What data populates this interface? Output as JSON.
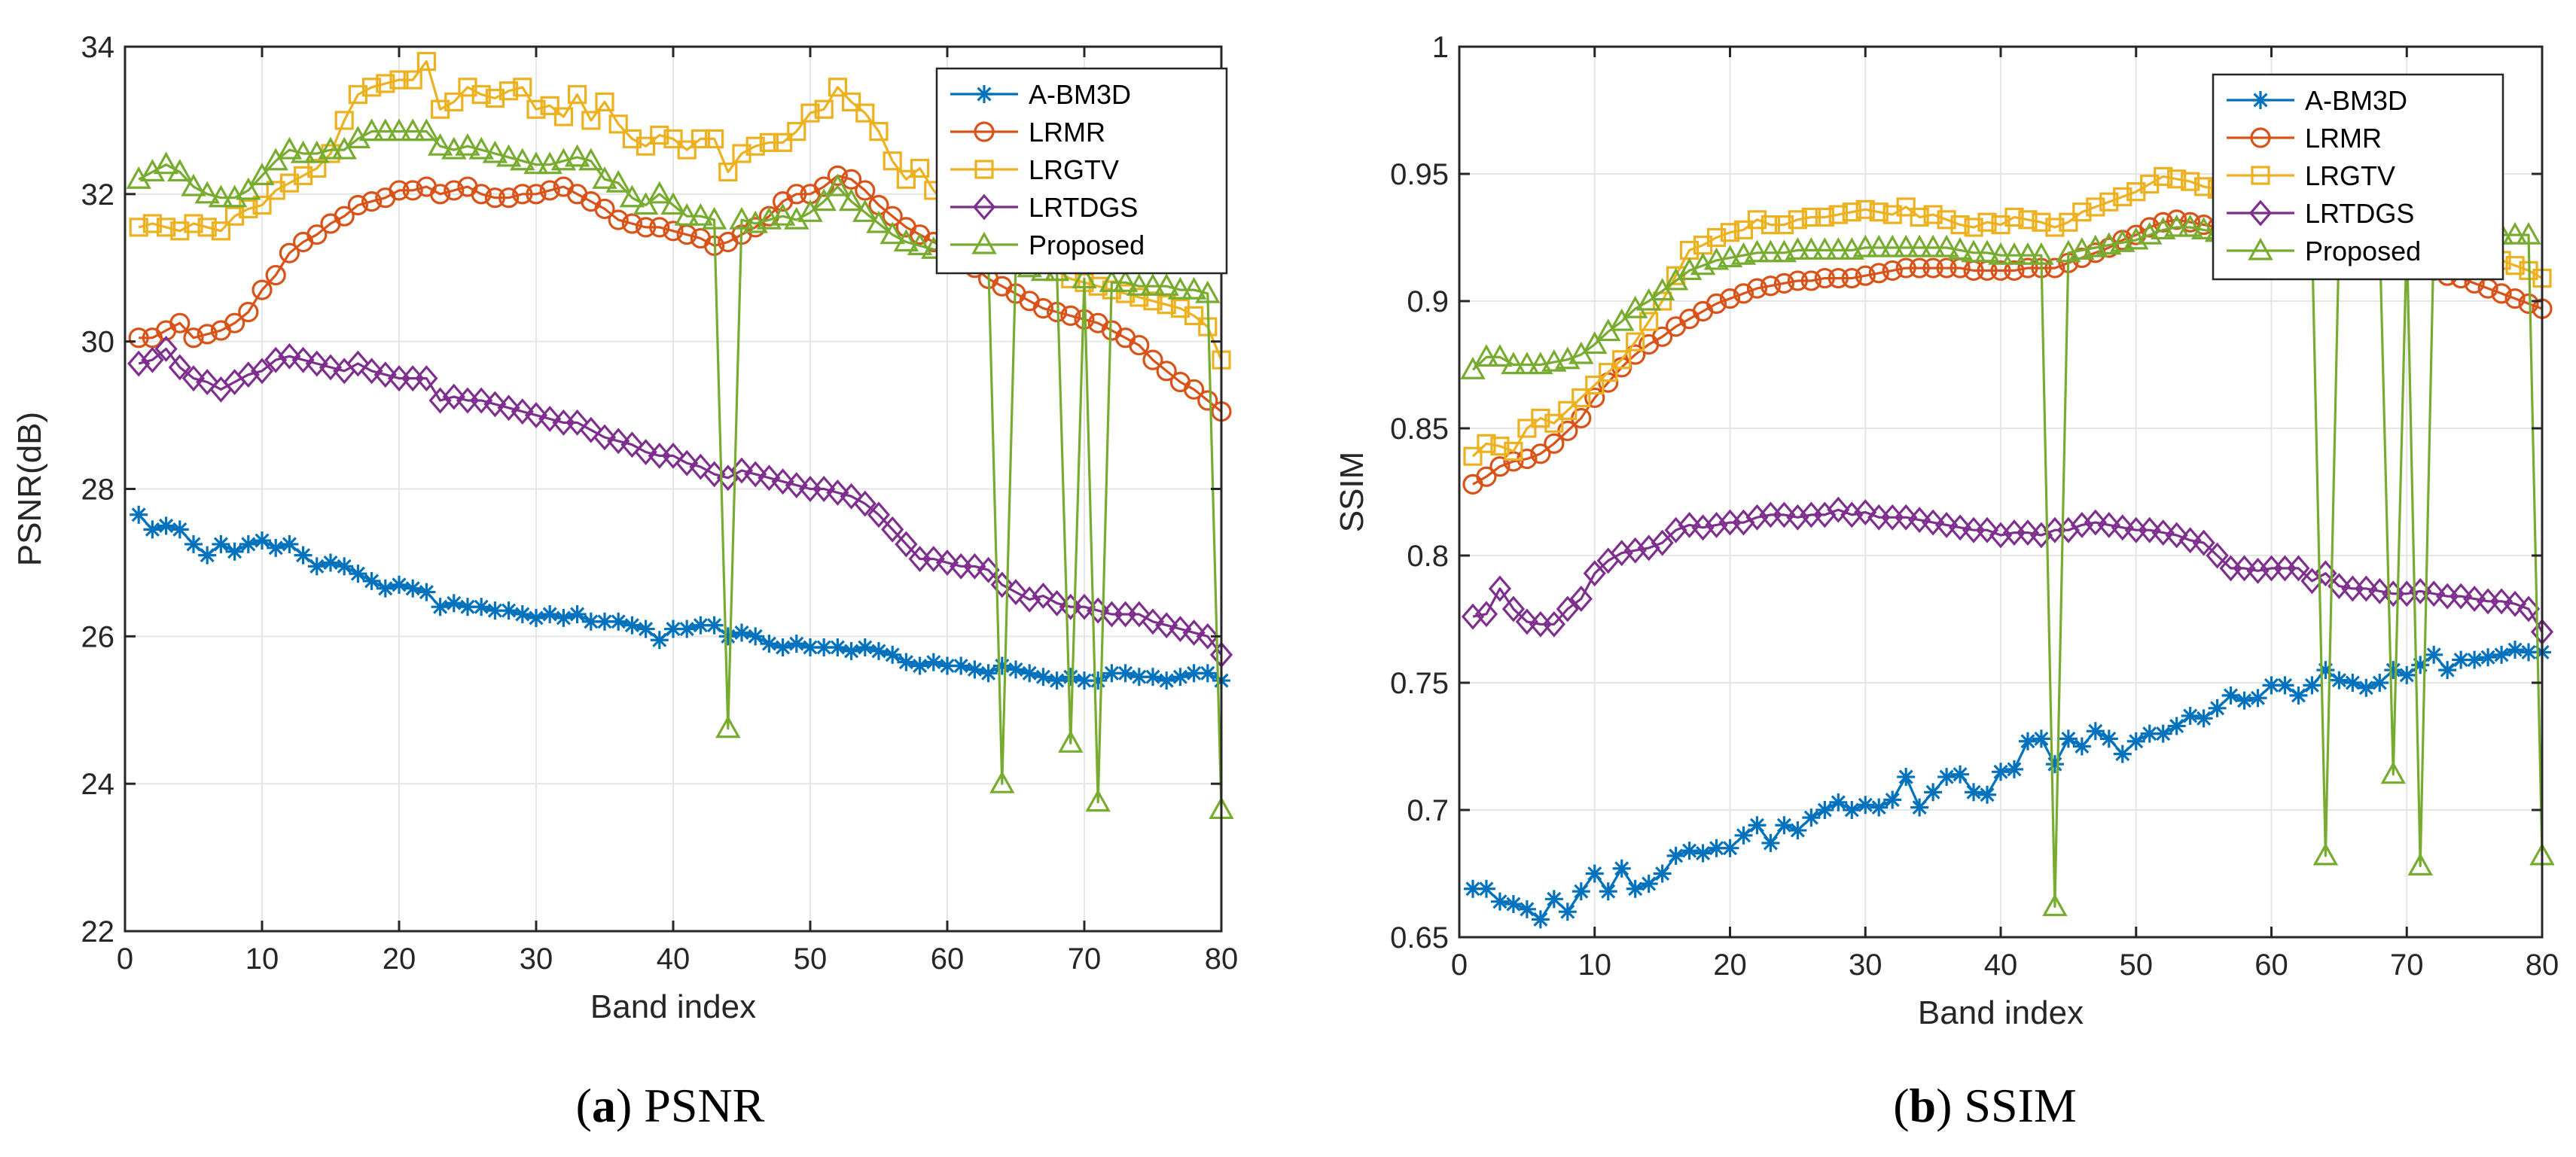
{
  "figure": {
    "captions": [
      {
        "letter": "a",
        "text": " PSNR"
      },
      {
        "letter": "b",
        "text": " SSIM"
      }
    ]
  },
  "chart_data": [
    {
      "type": "line",
      "xlabel": "Band index",
      "ylabel": "PSNR(dB)",
      "xlim": [
        0,
        80
      ],
      "ylim": [
        22,
        34
      ],
      "xticks": [
        0,
        10,
        20,
        30,
        40,
        50,
        60,
        70,
        80
      ],
      "yticks": [
        22,
        24,
        26,
        28,
        30,
        32,
        34
      ],
      "grid": true,
      "legend_position": "top-right",
      "series": [
        {
          "name": "A-BM3D",
          "color": "#0072BD",
          "marker": "asterisk",
          "values": [
            27.65,
            27.45,
            27.5,
            27.45,
            27.25,
            27.1,
            27.25,
            27.15,
            27.25,
            27.3,
            27.2,
            27.25,
            27.1,
            26.95,
            27.0,
            26.95,
            26.85,
            26.75,
            26.65,
            26.7,
            26.65,
            26.6,
            26.4,
            26.45,
            26.4,
            26.4,
            26.35,
            26.35,
            26.3,
            26.25,
            26.3,
            26.25,
            26.3,
            26.2,
            26.2,
            26.2,
            26.15,
            26.1,
            25.95,
            26.1,
            26.1,
            26.15,
            26.15,
            26.0,
            26.05,
            26.0,
            25.9,
            25.85,
            25.9,
            25.85,
            25.85,
            25.85,
            25.8,
            25.85,
            25.8,
            25.75,
            25.65,
            25.6,
            25.65,
            25.6,
            25.6,
            25.55,
            25.5,
            25.6,
            25.55,
            25.5,
            25.45,
            25.4,
            25.45,
            25.4,
            25.4,
            25.5,
            25.5,
            25.45,
            25.45,
            25.4,
            25.45,
            25.5,
            25.5,
            25.4
          ]
        },
        {
          "name": "LRMR",
          "color": "#D95319",
          "marker": "circle",
          "values": [
            30.05,
            30.05,
            30.15,
            30.25,
            30.05,
            30.1,
            30.15,
            30.25,
            30.4,
            30.7,
            30.9,
            31.2,
            31.35,
            31.45,
            31.6,
            31.7,
            31.85,
            31.9,
            31.95,
            32.05,
            32.05,
            32.1,
            32.0,
            32.05,
            32.1,
            32.0,
            31.95,
            31.95,
            32.0,
            32.0,
            32.05,
            32.1,
            32.0,
            31.9,
            31.8,
            31.65,
            31.6,
            31.55,
            31.55,
            31.5,
            31.45,
            31.4,
            31.3,
            31.35,
            31.45,
            31.55,
            31.7,
            31.9,
            32.0,
            32.0,
            32.1,
            32.25,
            32.2,
            32.05,
            31.85,
            31.7,
            31.55,
            31.45,
            31.35,
            31.25,
            31.15,
            31.0,
            30.85,
            30.75,
            30.65,
            30.55,
            30.45,
            30.4,
            30.35,
            30.3,
            30.25,
            30.15,
            30.05,
            29.95,
            29.75,
            29.6,
            29.45,
            29.35,
            29.2,
            29.05
          ]
        },
        {
          "name": "LRGTV",
          "color": "#EDB120",
          "marker": "square",
          "values": [
            31.55,
            31.6,
            31.55,
            31.5,
            31.6,
            31.55,
            31.5,
            31.7,
            31.8,
            31.85,
            32.05,
            32.15,
            32.25,
            32.35,
            32.55,
            33.0,
            33.35,
            33.45,
            33.5,
            33.55,
            33.55,
            33.8,
            33.15,
            33.25,
            33.45,
            33.35,
            33.3,
            33.4,
            33.45,
            33.15,
            33.2,
            33.05,
            33.35,
            33.0,
            33.25,
            32.95,
            32.75,
            32.65,
            32.8,
            32.75,
            32.6,
            32.75,
            32.75,
            32.3,
            32.55,
            32.65,
            32.7,
            32.7,
            32.85,
            33.1,
            33.15,
            33.45,
            33.25,
            33.1,
            32.85,
            32.45,
            32.2,
            32.35,
            32.05,
            31.85,
            31.75,
            31.65,
            31.55,
            31.45,
            31.35,
            31.2,
            31.1,
            30.95,
            30.85,
            30.8,
            30.75,
            30.7,
            30.65,
            30.6,
            30.55,
            30.5,
            30.45,
            30.35,
            30.2,
            29.75
          ]
        },
        {
          "name": "LRTDGS",
          "color": "#7E2F8E",
          "marker": "diamond",
          "values": [
            29.7,
            29.75,
            29.9,
            29.65,
            29.5,
            29.45,
            29.35,
            29.45,
            29.55,
            29.6,
            29.75,
            29.8,
            29.75,
            29.7,
            29.65,
            29.6,
            29.7,
            29.6,
            29.55,
            29.5,
            29.5,
            29.5,
            29.2,
            29.25,
            29.2,
            29.2,
            29.15,
            29.1,
            29.05,
            29.0,
            28.95,
            28.9,
            28.9,
            28.8,
            28.7,
            28.65,
            28.6,
            28.5,
            28.45,
            28.45,
            28.35,
            28.3,
            28.2,
            28.15,
            28.25,
            28.2,
            28.15,
            28.1,
            28.05,
            28.0,
            28.0,
            27.95,
            27.9,
            27.8,
            27.65,
            27.45,
            27.25,
            27.05,
            27.05,
            27.0,
            26.95,
            26.95,
            26.9,
            26.7,
            26.6,
            26.5,
            26.55,
            26.45,
            26.4,
            26.4,
            26.35,
            26.3,
            26.3,
            26.3,
            26.2,
            26.15,
            26.1,
            26.05,
            26.0,
            25.75
          ]
        },
        {
          "name": "Proposed",
          "color": "#77AC30",
          "marker": "triangle",
          "values": [
            32.2,
            32.3,
            32.4,
            32.3,
            32.1,
            32.0,
            31.95,
            31.95,
            32.05,
            32.25,
            32.45,
            32.6,
            32.55,
            32.55,
            32.6,
            32.6,
            32.75,
            32.85,
            32.85,
            32.85,
            32.85,
            32.85,
            32.65,
            32.6,
            32.65,
            32.6,
            32.55,
            32.5,
            32.45,
            32.4,
            32.4,
            32.45,
            32.5,
            32.45,
            32.2,
            32.15,
            31.95,
            31.85,
            32.0,
            31.85,
            31.7,
            31.7,
            31.65,
            24.75,
            31.65,
            31.6,
            31.65,
            31.7,
            31.65,
            31.75,
            31.9,
            32.1,
            31.9,
            31.75,
            31.6,
            31.45,
            31.35,
            31.3,
            31.25,
            31.25,
            31.2,
            31.15,
            31.1,
            24.0,
            31.05,
            31.0,
            30.95,
            30.95,
            24.55,
            30.85,
            23.75,
            30.8,
            30.8,
            30.75,
            30.75,
            30.75,
            30.7,
            30.7,
            30.65,
            23.65
          ]
        }
      ]
    },
    {
      "type": "line",
      "xlabel": "Band index",
      "ylabel": "SSIM",
      "xlim": [
        0,
        80
      ],
      "ylim": [
        0.65,
        1.0
      ],
      "xticks": [
        0,
        10,
        20,
        30,
        40,
        50,
        60,
        70,
        80
      ],
      "yticks": [
        0.65,
        0.7,
        0.75,
        0.8,
        0.85,
        0.9,
        0.95,
        1.0
      ],
      "ytick_labels": [
        "0.65",
        "0.7",
        "0.75",
        "0.8",
        "0.85",
        "0.9",
        "0.95",
        "1"
      ],
      "grid": true,
      "legend_position": "top-right",
      "series": [
        {
          "name": "A-BM3D",
          "color": "#0072BD",
          "marker": "asterisk",
          "values": [
            0.669,
            0.669,
            0.664,
            0.663,
            0.661,
            0.657,
            0.665,
            0.66,
            0.668,
            0.675,
            0.668,
            0.677,
            0.669,
            0.671,
            0.675,
            0.682,
            0.684,
            0.683,
            0.685,
            0.685,
            0.69,
            0.694,
            0.687,
            0.694,
            0.692,
            0.697,
            0.7,
            0.703,
            0.7,
            0.702,
            0.701,
            0.704,
            0.713,
            0.701,
            0.707,
            0.713,
            0.714,
            0.707,
            0.706,
            0.715,
            0.716,
            0.727,
            0.728,
            0.718,
            0.728,
            0.725,
            0.731,
            0.728,
            0.722,
            0.727,
            0.73,
            0.73,
            0.733,
            0.737,
            0.736,
            0.74,
            0.745,
            0.743,
            0.744,
            0.749,
            0.749,
            0.745,
            0.749,
            0.755,
            0.751,
            0.75,
            0.748,
            0.75,
            0.755,
            0.753,
            0.757,
            0.761,
            0.755,
            0.759,
            0.759,
            0.76,
            0.761,
            0.763,
            0.762,
            0.762
          ]
        },
        {
          "name": "LRMR",
          "color": "#D95319",
          "marker": "circle",
          "values": [
            0.828,
            0.831,
            0.835,
            0.837,
            0.838,
            0.84,
            0.844,
            0.849,
            0.854,
            0.862,
            0.868,
            0.874,
            0.879,
            0.883,
            0.886,
            0.89,
            0.893,
            0.896,
            0.899,
            0.901,
            0.903,
            0.905,
            0.906,
            0.907,
            0.908,
            0.908,
            0.909,
            0.909,
            0.909,
            0.91,
            0.911,
            0.912,
            0.913,
            0.913,
            0.913,
            0.913,
            0.913,
            0.912,
            0.912,
            0.912,
            0.912,
            0.913,
            0.913,
            0.913,
            0.915,
            0.917,
            0.919,
            0.921,
            0.924,
            0.926,
            0.929,
            0.931,
            0.932,
            0.931,
            0.93,
            0.929,
            0.928,
            0.927,
            0.926,
            0.925,
            0.924,
            0.922,
            0.921,
            0.92,
            0.919,
            0.918,
            0.917,
            0.916,
            0.915,
            0.914,
            0.913,
            0.912,
            0.91,
            0.909,
            0.907,
            0.905,
            0.903,
            0.901,
            0.899,
            0.897
          ]
        },
        {
          "name": "LRGTV",
          "color": "#EDB120",
          "marker": "square",
          "values": [
            0.839,
            0.844,
            0.843,
            0.841,
            0.85,
            0.854,
            0.852,
            0.857,
            0.862,
            0.867,
            0.872,
            0.877,
            0.884,
            0.892,
            0.9,
            0.91,
            0.92,
            0.922,
            0.925,
            0.927,
            0.928,
            0.932,
            0.93,
            0.93,
            0.932,
            0.933,
            0.933,
            0.934,
            0.935,
            0.936,
            0.935,
            0.934,
            0.937,
            0.933,
            0.934,
            0.932,
            0.93,
            0.929,
            0.931,
            0.93,
            0.933,
            0.932,
            0.931,
            0.929,
            0.931,
            0.935,
            0.937,
            0.939,
            0.941,
            0.943,
            0.946,
            0.949,
            0.948,
            0.947,
            0.945,
            0.944,
            0.942,
            0.94,
            0.939,
            0.937,
            0.935,
            0.934,
            0.932,
            0.93,
            0.929,
            0.928,
            0.926,
            0.925,
            0.924,
            0.923,
            0.922,
            0.921,
            0.92,
            0.919,
            0.918,
            0.917,
            0.916,
            0.914,
            0.912,
            0.909
          ]
        },
        {
          "name": "LRTDGS",
          "color": "#7E2F8E",
          "marker": "diamond",
          "values": [
            0.776,
            0.777,
            0.787,
            0.779,
            0.774,
            0.773,
            0.773,
            0.779,
            0.783,
            0.793,
            0.798,
            0.801,
            0.802,
            0.803,
            0.805,
            0.81,
            0.812,
            0.811,
            0.812,
            0.813,
            0.813,
            0.815,
            0.816,
            0.816,
            0.815,
            0.816,
            0.816,
            0.818,
            0.816,
            0.817,
            0.815,
            0.815,
            0.815,
            0.814,
            0.813,
            0.812,
            0.811,
            0.81,
            0.81,
            0.808,
            0.809,
            0.809,
            0.808,
            0.81,
            0.81,
            0.812,
            0.813,
            0.812,
            0.811,
            0.81,
            0.81,
            0.809,
            0.808,
            0.806,
            0.805,
            0.8,
            0.795,
            0.795,
            0.794,
            0.795,
            0.795,
            0.795,
            0.79,
            0.793,
            0.788,
            0.787,
            0.787,
            0.786,
            0.785,
            0.785,
            0.786,
            0.785,
            0.784,
            0.784,
            0.783,
            0.782,
            0.782,
            0.781,
            0.779,
            0.77
          ]
        },
        {
          "name": "Proposed",
          "color": "#77AC30",
          "marker": "triangle",
          "values": [
            0.873,
            0.878,
            0.878,
            0.875,
            0.875,
            0.875,
            0.876,
            0.877,
            0.879,
            0.883,
            0.888,
            0.892,
            0.897,
            0.9,
            0.904,
            0.908,
            0.912,
            0.914,
            0.916,
            0.917,
            0.918,
            0.919,
            0.919,
            0.919,
            0.92,
            0.92,
            0.92,
            0.92,
            0.92,
            0.921,
            0.921,
            0.921,
            0.921,
            0.921,
            0.921,
            0.921,
            0.92,
            0.919,
            0.919,
            0.918,
            0.918,
            0.918,
            0.918,
            0.662,
            0.919,
            0.92,
            0.921,
            0.922,
            0.923,
            0.924,
            0.926,
            0.928,
            0.929,
            0.929,
            0.928,
            0.927,
            0.926,
            0.926,
            0.925,
            0.925,
            0.925,
            0.925,
            0.925,
            0.682,
            0.925,
            0.925,
            0.925,
            0.925,
            0.714,
            0.925,
            0.678,
            0.925,
            0.925,
            0.926,
            0.926,
            0.926,
            0.926,
            0.926,
            0.926,
            0.682
          ]
        }
      ]
    }
  ]
}
